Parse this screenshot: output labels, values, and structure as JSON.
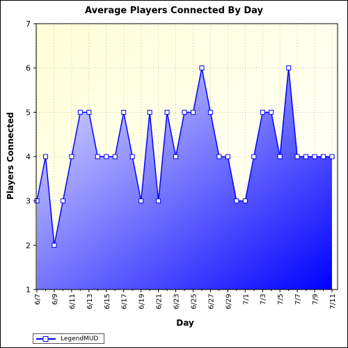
{
  "chart_data": {
    "type": "area",
    "title": "Average Players Connected By Day",
    "xlabel": "Day",
    "ylabel": "Players Connected",
    "ylim": [
      1,
      7
    ],
    "yticks": [
      "1",
      "2",
      "3",
      "4",
      "5",
      "6",
      "7"
    ],
    "x_tick_labels": [
      "6/7",
      "6/9",
      "6/11",
      "6/13",
      "6/15",
      "6/17",
      "6/19",
      "6/21",
      "6/23",
      "6/25",
      "6/27",
      "6/29",
      "7/1",
      "7/3",
      "7/5",
      "7/7",
      "7/9",
      "7/11"
    ],
    "categories": [
      "6/7",
      "6/8",
      "6/9",
      "6/10",
      "6/11",
      "6/12",
      "6/13",
      "6/14",
      "6/15",
      "6/16",
      "6/17",
      "6/18",
      "6/19",
      "6/20",
      "6/21",
      "6/22",
      "6/23",
      "6/24",
      "6/25",
      "6/26",
      "6/27",
      "6/28",
      "6/29",
      "6/30",
      "7/1",
      "7/2",
      "7/3",
      "7/4",
      "7/5",
      "7/6",
      "7/7",
      "7/8",
      "7/9",
      "7/10",
      "7/11"
    ],
    "series": [
      {
        "name": "LegendMUD",
        "values": [
          3,
          4,
          2,
          3,
          4,
          5,
          5,
          4,
          4,
          4,
          5,
          4,
          3,
          5,
          3,
          5,
          4,
          5,
          5,
          6,
          5,
          4,
          4,
          3,
          3,
          4,
          5,
          5,
          4,
          6,
          4,
          4,
          4,
          4,
          4
        ]
      }
    ],
    "grid": true,
    "legend_position": "bottom-left"
  },
  "colors": {
    "plot_background_top": "#ffffe0",
    "series_line": "#0000ff",
    "area_light": "#d9d9ff",
    "area_dark": "#0000ff",
    "marker_fill": "#ffffff"
  }
}
